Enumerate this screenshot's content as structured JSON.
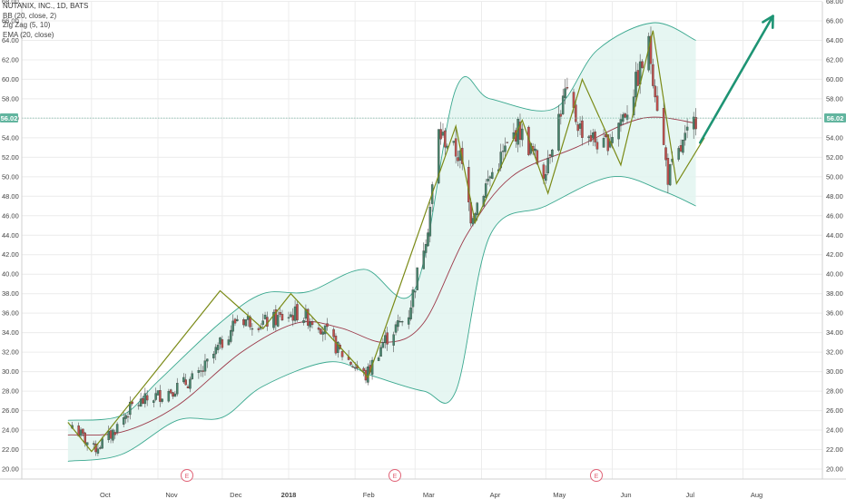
{
  "legend": {
    "symbol": "NUTANIX, INC., 1D, BATS",
    "bb": "BB (20, close, 2)",
    "zigzag": "Zig Zag (5, 10)",
    "ema": "EMA (20, close)"
  },
  "price_badge": "56.02",
  "chart_data": {
    "type": "candlestick",
    "title": "NUTANIX, INC., 1D, BATS",
    "ylim": [
      19.5,
      68
    ],
    "y_ticks": [
      "20.00",
      "22.00",
      "24.00",
      "26.00",
      "28.00",
      "30.00",
      "32.00",
      "34.00",
      "36.00",
      "38.00",
      "40.00",
      "42.00",
      "44.00",
      "46.00",
      "48.00",
      "50.00",
      "52.00",
      "54.00",
      "56.00",
      "58.00",
      "60.00",
      "62.00",
      "64.00",
      "66.00",
      "68.00"
    ],
    "x_ticks": [
      "Oct",
      "Nov",
      "Dec",
      "2018",
      "Feb",
      "Mar",
      "Apr",
      "May",
      "Jun",
      "Jul",
      "Aug"
    ],
    "last_price": 56.02,
    "earnings_markers": [
      "E",
      "E",
      "E"
    ],
    "close_path": [
      {
        "date": "2017-09-22",
        "close": 24.5
      },
      {
        "date": "2017-10-02",
        "close": 22.0
      },
      {
        "date": "2017-10-10",
        "close": 23.5
      },
      {
        "date": "2017-10-20",
        "close": 26.5
      },
      {
        "date": "2017-11-06",
        "close": 28.0
      },
      {
        "date": "2017-11-20",
        "close": 29.5
      },
      {
        "date": "2017-12-01",
        "close": 33.0
      },
      {
        "date": "2017-12-08",
        "close": 35.5
      },
      {
        "date": "2017-12-20",
        "close": 35.0
      },
      {
        "date": "2018-01-05",
        "close": 36.0
      },
      {
        "date": "2018-01-15",
        "close": 35.0
      },
      {
        "date": "2018-01-25",
        "close": 32.0
      },
      {
        "date": "2018-02-06",
        "close": 29.5
      },
      {
        "date": "2018-02-14",
        "close": 33.0
      },
      {
        "date": "2018-02-26",
        "close": 36.0
      },
      {
        "date": "2018-03-07",
        "close": 45.0
      },
      {
        "date": "2018-03-12",
        "close": 54.5
      },
      {
        "date": "2018-03-22",
        "close": 52.0
      },
      {
        "date": "2018-03-27",
        "close": 46.0
      },
      {
        "date": "2018-04-05",
        "close": 50.0
      },
      {
        "date": "2018-04-18",
        "close": 55.0
      },
      {
        "date": "2018-04-30",
        "close": 50.5
      },
      {
        "date": "2018-05-10",
        "close": 58.5
      },
      {
        "date": "2018-05-17",
        "close": 55.0
      },
      {
        "date": "2018-05-28",
        "close": 53.0
      },
      {
        "date": "2018-06-08",
        "close": 57.0
      },
      {
        "date": "2018-06-18",
        "close": 63.5
      },
      {
        "date": "2018-06-27",
        "close": 50.0
      },
      {
        "date": "2018-07-10",
        "close": 56.0
      }
    ],
    "zigzag": [
      {
        "date": "2017-09-20",
        "value": 24.8
      },
      {
        "date": "2017-10-01",
        "value": 21.8
      },
      {
        "date": "2017-11-30",
        "value": 38.3
      },
      {
        "date": "2017-12-20",
        "value": 34.4
      },
      {
        "date": "2018-01-02",
        "value": 38.0
      },
      {
        "date": "2018-02-07",
        "value": 29.4
      },
      {
        "date": "2018-03-20",
        "value": 55.2
      },
      {
        "date": "2018-03-29",
        "value": 45.3
      },
      {
        "date": "2018-04-20",
        "value": 55.8
      },
      {
        "date": "2018-05-02",
        "value": 48.3
      },
      {
        "date": "2018-05-18",
        "value": 60.0
      },
      {
        "date": "2018-06-05",
        "value": 51.2
      },
      {
        "date": "2018-06-20",
        "value": 65.0
      },
      {
        "date": "2018-07-01",
        "value": 49.3
      },
      {
        "date": "2018-07-14",
        "value": 54.0
      }
    ],
    "bb_upper": [
      {
        "date": "2017-09-20",
        "value": 25.0
      },
      {
        "date": "2017-10-15",
        "value": 25.5
      },
      {
        "date": "2017-11-01",
        "value": 29.0
      },
      {
        "date": "2017-11-30",
        "value": 35.0
      },
      {
        "date": "2017-12-20",
        "value": 38.0
      },
      {
        "date": "2018-01-10",
        "value": 38.2
      },
      {
        "date": "2018-02-05",
        "value": 40.5
      },
      {
        "date": "2018-03-01",
        "value": 38.5
      },
      {
        "date": "2018-03-20",
        "value": 59.0
      },
      {
        "date": "2018-04-05",
        "value": 58.0
      },
      {
        "date": "2018-05-05",
        "value": 57.0
      },
      {
        "date": "2018-05-25",
        "value": 63.0
      },
      {
        "date": "2018-06-20",
        "value": 65.8
      },
      {
        "date": "2018-07-10",
        "value": 64.0
      }
    ],
    "bb_lower": [
      {
        "date": "2017-09-20",
        "value": 20.8
      },
      {
        "date": "2017-10-15",
        "value": 21.5
      },
      {
        "date": "2017-11-10",
        "value": 25.0
      },
      {
        "date": "2017-12-01",
        "value": 25.3
      },
      {
        "date": "2017-12-20",
        "value": 28.5
      },
      {
        "date": "2018-01-20",
        "value": 31.0
      },
      {
        "date": "2018-02-10",
        "value": 29.5
      },
      {
        "date": "2018-03-05",
        "value": 28.0
      },
      {
        "date": "2018-03-20",
        "value": 28.0
      },
      {
        "date": "2018-04-05",
        "value": 44.0
      },
      {
        "date": "2018-05-01",
        "value": 47.0
      },
      {
        "date": "2018-06-01",
        "value": 50.0
      },
      {
        "date": "2018-06-25",
        "value": 48.5
      },
      {
        "date": "2018-07-10",
        "value": 47.0
      }
    ],
    "ema20": [
      {
        "date": "2017-09-20",
        "value": 23.5
      },
      {
        "date": "2017-10-15",
        "value": 23.8
      },
      {
        "date": "2017-11-10",
        "value": 26.5
      },
      {
        "date": "2017-12-10",
        "value": 32.0
      },
      {
        "date": "2018-01-05",
        "value": 35.0
      },
      {
        "date": "2018-01-25",
        "value": 34.5
      },
      {
        "date": "2018-02-15",
        "value": 33.0
      },
      {
        "date": "2018-03-05",
        "value": 35.0
      },
      {
        "date": "2018-03-25",
        "value": 44.0
      },
      {
        "date": "2018-04-15",
        "value": 50.0
      },
      {
        "date": "2018-05-15",
        "value": 53.0
      },
      {
        "date": "2018-06-15",
        "value": 56.0
      },
      {
        "date": "2018-07-10",
        "value": 55.5
      }
    ],
    "forecast_arrow": {
      "from": {
        "date": "2018-07-12",
        "value": 53.5
      },
      "to": {
        "date": "2018-08-15",
        "value": 66.5
      }
    }
  },
  "colors": {
    "up": "#48856d",
    "down": "#c0504d",
    "zigzag": "#7a8a16",
    "bb": "#3aa88f",
    "bb_fill": "#e2f4f0",
    "ema": "#9c3a4a",
    "arrow": "#1e9474",
    "grid": "#ececec",
    "earnings": "#e06377",
    "badge": "#62b59f"
  }
}
